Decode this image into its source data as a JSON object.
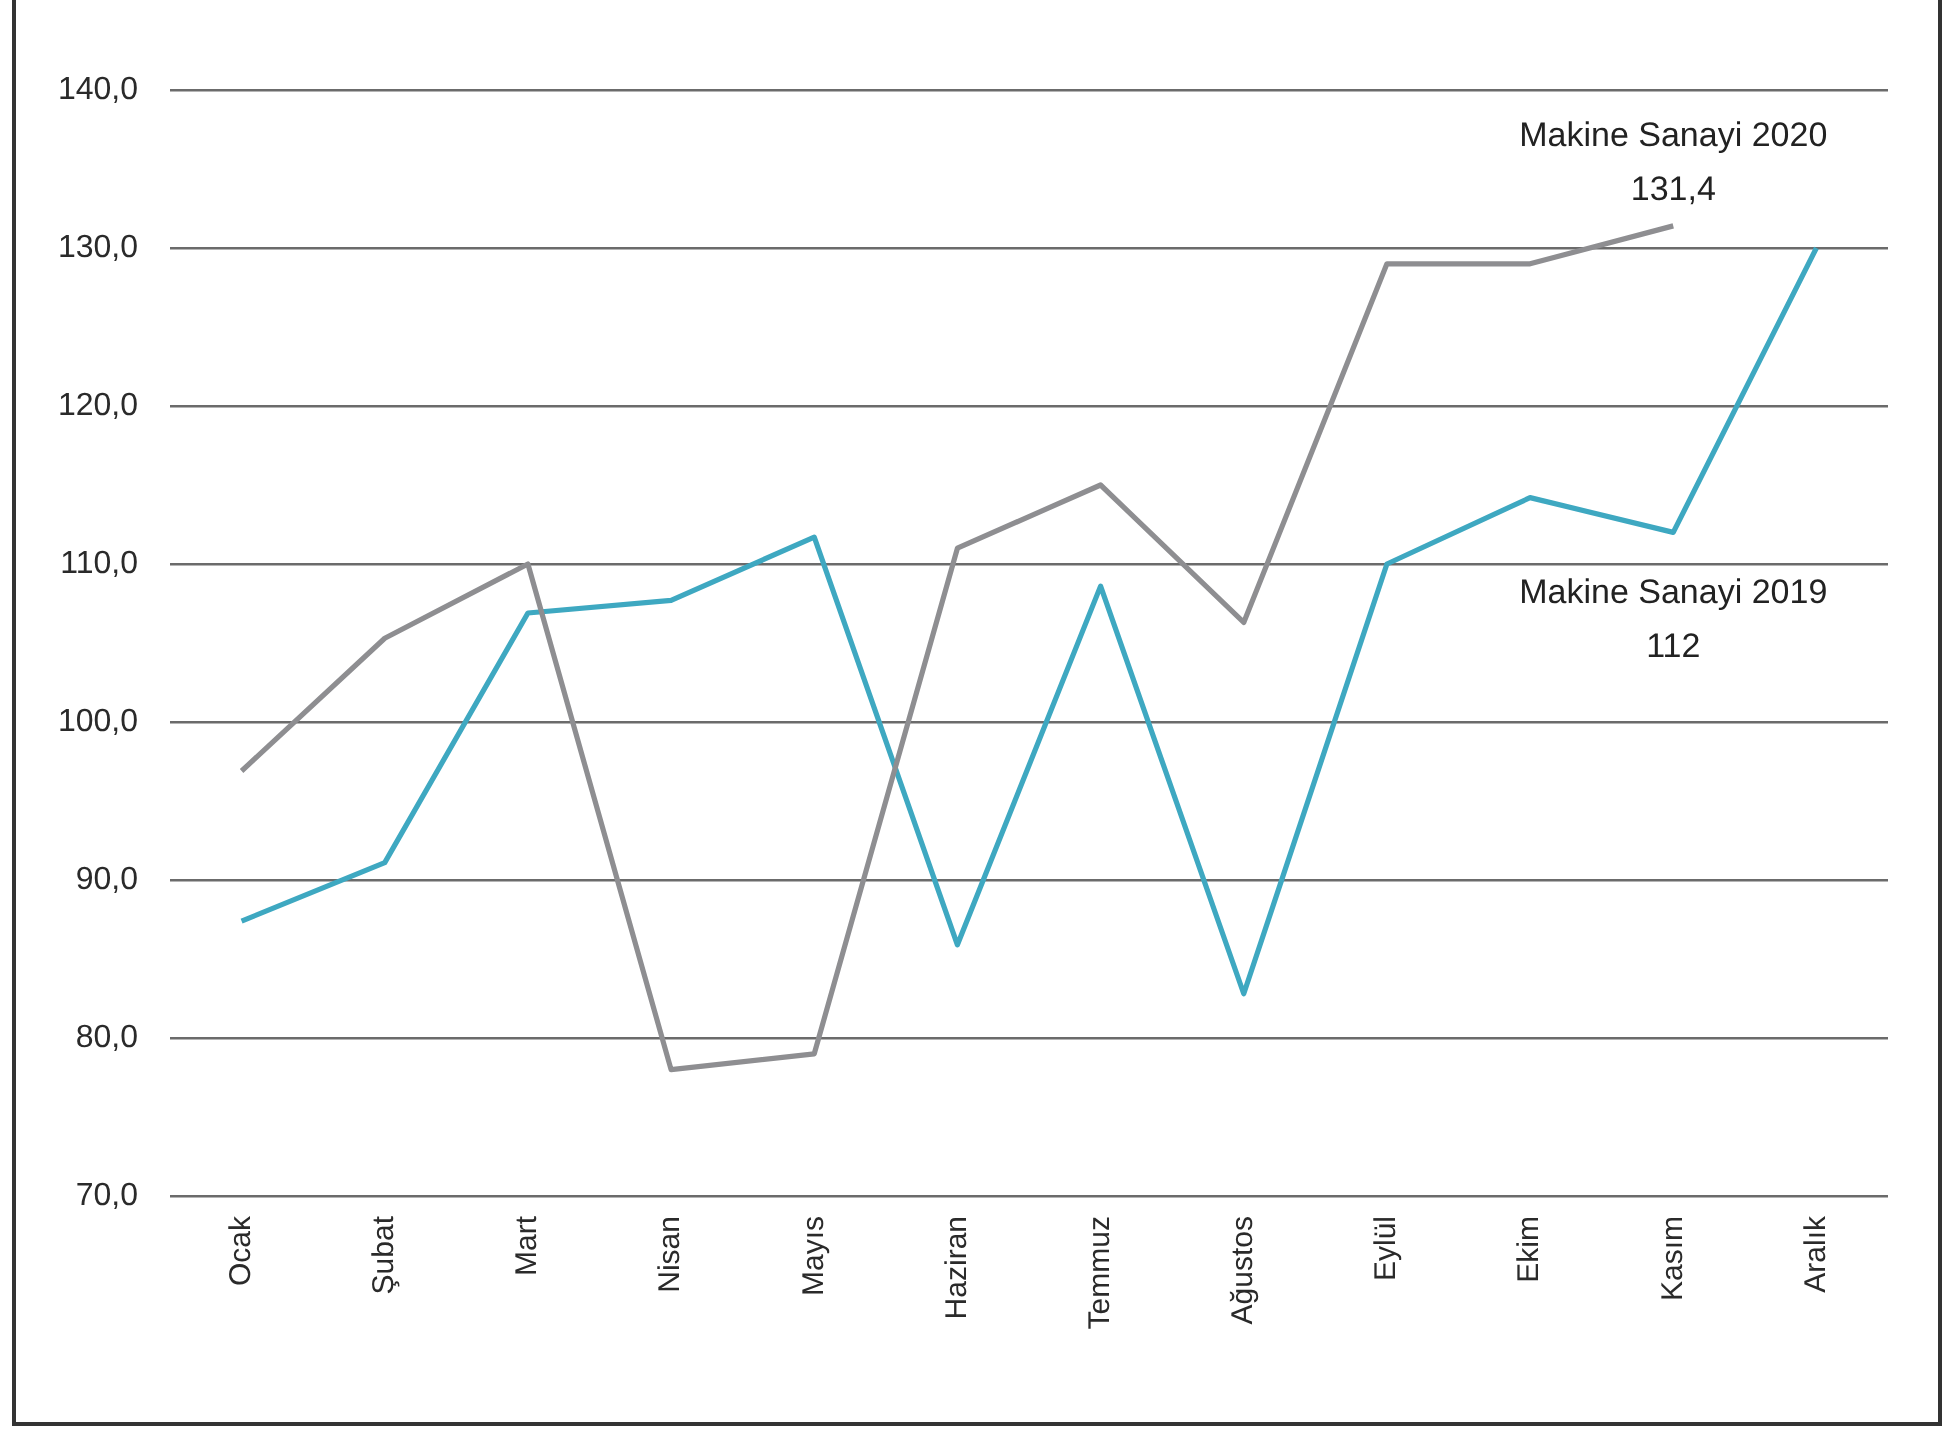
{
  "chart_data": {
    "type": "line",
    "categories": [
      "Ocak",
      "Şubat",
      "Mart",
      "Nisan",
      "Mayıs",
      "Haziran",
      "Temmuz",
      "Ağustos",
      "Eylül",
      "Ekim",
      "Kasım",
      "Aralık"
    ],
    "series": [
      {
        "name": "Makine Sanayi 2020",
        "color": "#8e8e91",
        "values": [
          96.9,
          105.3,
          110.0,
          78.0,
          79.0,
          111.0,
          115.0,
          106.3,
          129.0,
          129.0,
          131.4,
          null
        ],
        "value_labels": [
          null,
          null,
          null,
          null,
          null,
          null,
          null,
          null,
          null,
          null,
          "131,4",
          null
        ]
      },
      {
        "name": "Makine Sanayi 2019",
        "color": "#3ea8c1",
        "values": [
          87.4,
          91.1,
          106.9,
          107.7,
          111.7,
          85.9,
          108.6,
          82.8,
          110.0,
          114.2,
          112,
          130.0
        ],
        "value_labels": [
          null,
          null,
          null,
          null,
          null,
          null,
          null,
          null,
          null,
          null,
          "112",
          null
        ]
      }
    ],
    "ylim": [
      70,
      140
    ],
    "yticks": [
      {
        "value": 70,
        "label": "70,0"
      },
      {
        "value": 80,
        "label": "80,0"
      },
      {
        "value": 90,
        "label": "90,0"
      },
      {
        "value": 100,
        "label": "100,0"
      },
      {
        "value": 110,
        "label": "110,0"
      },
      {
        "value": 120,
        "label": "120,0"
      },
      {
        "value": 130,
        "label": "130,0"
      },
      {
        "value": 140,
        "label": "140,0"
      }
    ],
    "grid": "y",
    "legend": false,
    "marker": "none",
    "line_style": "solid"
  }
}
